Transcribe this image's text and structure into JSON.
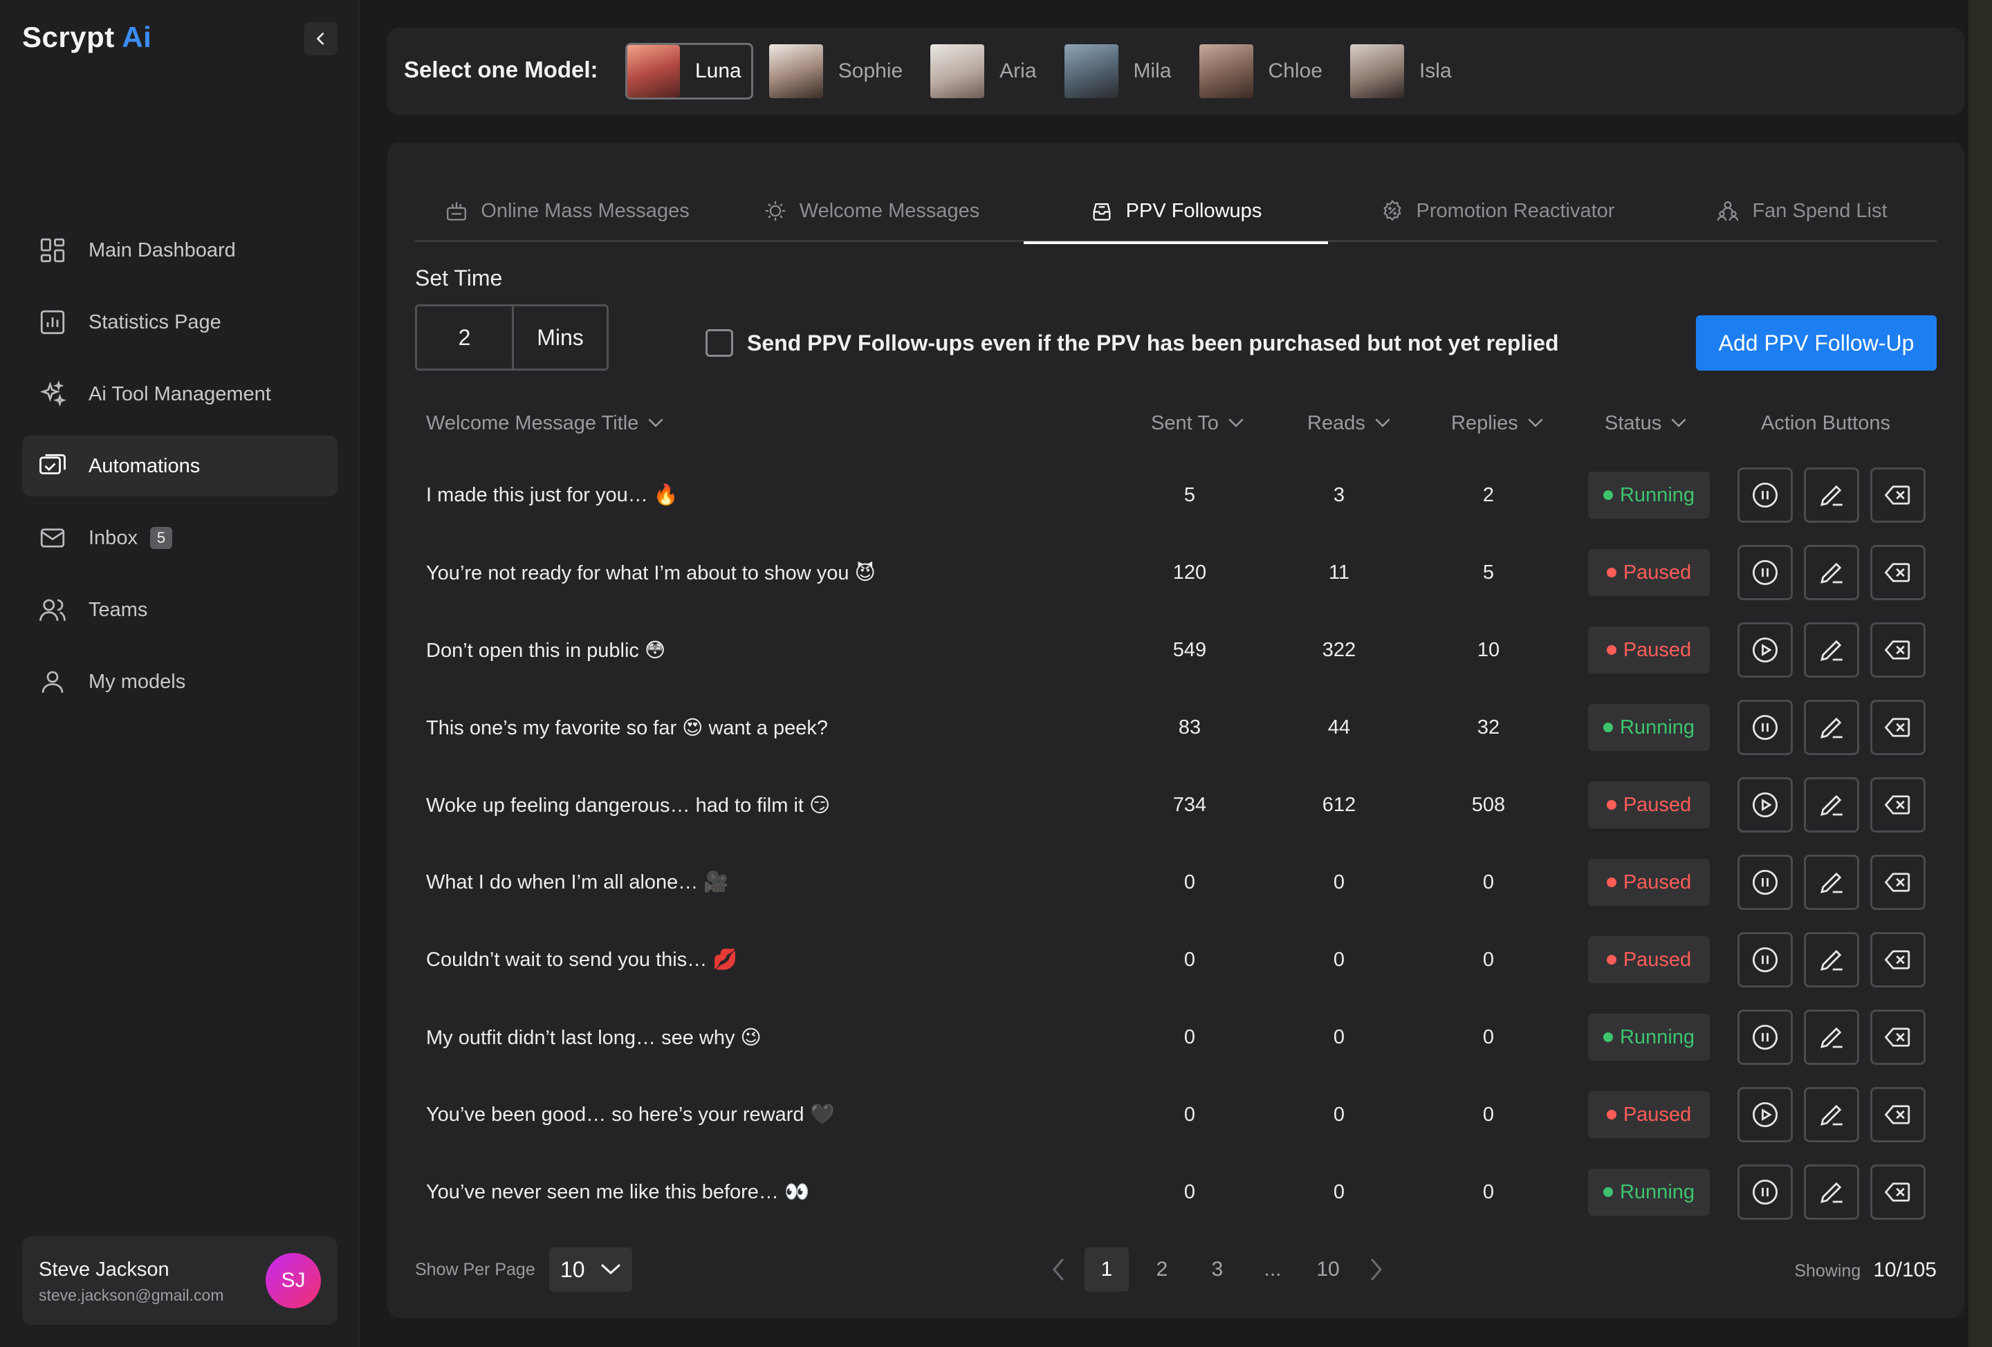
{
  "app": {
    "logo_main": "Scrypt",
    "logo_accent": "Ai"
  },
  "sidebar": {
    "items": [
      {
        "label": "Main Dashboard",
        "icon": "dashboard-icon"
      },
      {
        "label": "Statistics Page",
        "icon": "chart-icon"
      },
      {
        "label": "Ai Tool Management",
        "icon": "sparkle-icon"
      },
      {
        "label": "Automations",
        "icon": "automation-icon",
        "active": true
      },
      {
        "label": "Inbox",
        "icon": "mail-icon",
        "badge": "5"
      },
      {
        "label": "Teams",
        "icon": "team-icon"
      },
      {
        "label": "My models",
        "icon": "user-icon"
      }
    ]
  },
  "user": {
    "name": "Steve Jackson",
    "email": "steve.jackson@gmail.com",
    "initials": "SJ"
  },
  "model_bar": {
    "label": "Select one Model:",
    "models": [
      "Luna",
      "Sophie",
      "Aria",
      "Mila",
      "Chloe",
      "Isla"
    ],
    "selected": "Luna"
  },
  "tabs": [
    {
      "label": "Online Mass Messages",
      "icon": "broadcast-icon"
    },
    {
      "label": "Welcome Messages",
      "icon": "welcome-icon"
    },
    {
      "label": "PPV Followups",
      "icon": "inbox-icon",
      "active": true
    },
    {
      "label": "Promotion Reactivator",
      "icon": "badge-icon"
    },
    {
      "label": "Fan Spend List",
      "icon": "people-icon"
    }
  ],
  "settings": {
    "set_time_label": "Set Time",
    "time_value": "2",
    "time_unit": "Mins",
    "checkbox_label": "Send PPV Follow-ups even if the PPV has been purchased but not yet replied",
    "add_button": "Add PPV Follow-Up"
  },
  "table": {
    "headers": {
      "title": "Welcome Message Title",
      "sent_to": "Sent To",
      "reads": "Reads",
      "replies": "Replies",
      "status": "Status",
      "actions": "Action Buttons"
    },
    "rows": [
      {
        "title": "I made this just for you… 🔥",
        "sent_to": "5",
        "reads": "3",
        "replies": "2",
        "status": "Running",
        "toggle": "pause"
      },
      {
        "title": "You’re not ready for what I’m about to show you 😈",
        "sent_to": "120",
        "reads": "11",
        "replies": "5",
        "status": "Paused",
        "toggle": "pause"
      },
      {
        "title": "Don’t open this in public 😳",
        "sent_to": "549",
        "reads": "322",
        "replies": "10",
        "status": "Paused",
        "toggle": "play"
      },
      {
        "title": "This one’s my favorite so far 😍 want a peek?",
        "sent_to": "83",
        "reads": "44",
        "replies": "32",
        "status": "Running",
        "toggle": "pause"
      },
      {
        "title": "Woke up feeling dangerous… had to film it 😏",
        "sent_to": "734",
        "reads": "612",
        "replies": "508",
        "status": "Paused",
        "toggle": "play"
      },
      {
        "title": "What I do when I’m all alone… 🎥",
        "sent_to": "0",
        "reads": "0",
        "replies": "0",
        "status": "Paused",
        "toggle": "pause"
      },
      {
        "title": "Couldn’t wait to send you this… 💋",
        "sent_to": "0",
        "reads": "0",
        "replies": "0",
        "status": "Paused",
        "toggle": "pause"
      },
      {
        "title": "My outfit didn’t last long… see why 😉",
        "sent_to": "0",
        "reads": "0",
        "replies": "0",
        "status": "Running",
        "toggle": "pause"
      },
      {
        "title": "You’ve been good… so here’s your reward 🖤",
        "sent_to": "0",
        "reads": "0",
        "replies": "0",
        "status": "Paused",
        "toggle": "play"
      },
      {
        "title": "You’ve never seen me like this before… 👀",
        "sent_to": "0",
        "reads": "0",
        "replies": "0",
        "status": "Running",
        "toggle": "pause"
      }
    ]
  },
  "pagination": {
    "per_page_label": "Show Per Page",
    "per_page_value": "10",
    "pages": [
      "1",
      "2",
      "3",
      "...",
      "10"
    ],
    "current": "1",
    "showing_label": "Showing",
    "showing_value": "10/105"
  },
  "colors": {
    "accent": "#1d7ef2",
    "running": "#3ec46d",
    "paused": "#ff5d57",
    "logo_ai": "#3b8df2"
  }
}
